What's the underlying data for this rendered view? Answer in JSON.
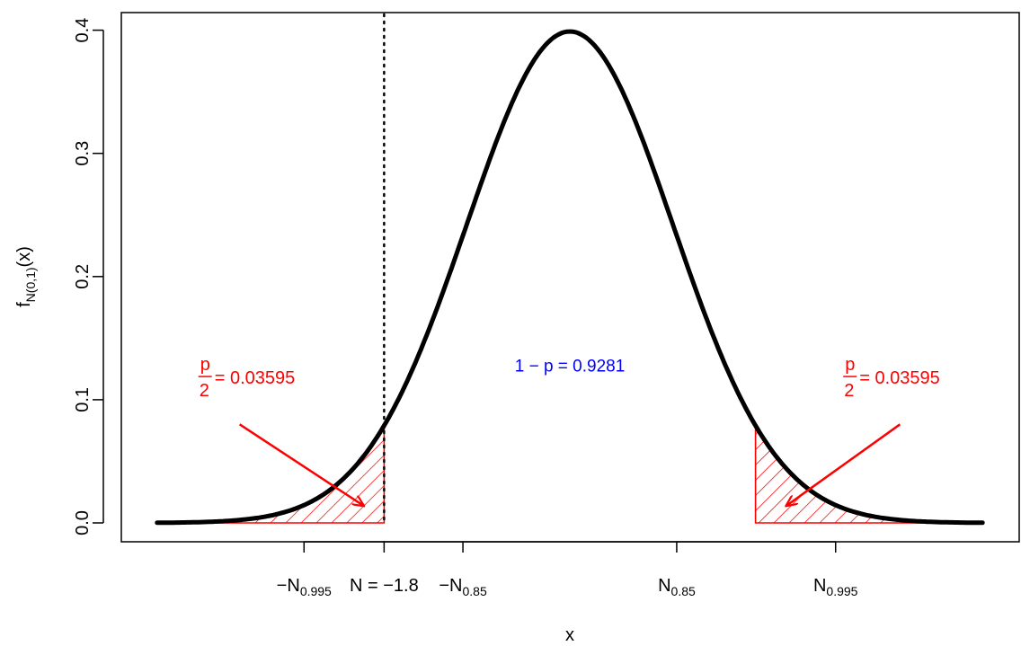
{
  "chart_data": {
    "type": "area",
    "title": "",
    "xlabel": "x",
    "ylabel_main": "f",
    "ylabel_sub": "N(0,1)",
    "ylabel_suffix": "(x)",
    "xlim": [
      -4.2,
      4.2
    ],
    "ylim": [
      0,
      0.4
    ],
    "y_ticks": [
      0.0,
      0.1,
      0.2,
      0.3,
      0.4
    ],
    "y_tick_labels": [
      "0.0",
      "0.1",
      "0.2",
      "0.3",
      "0.4"
    ],
    "curve": {
      "name": "",
      "function": "standard normal density",
      "mean": 0,
      "sd": 1,
      "x_from": -4,
      "x_to": 4,
      "color": "#000000"
    },
    "x_ticks": [
      {
        "x": -2.576,
        "sign": "−",
        "main": "N",
        "sub": "0.995",
        "suffix": ""
      },
      {
        "x": -1.8,
        "sign": "",
        "main": "N = −1.8",
        "sub": "",
        "suffix": ""
      },
      {
        "x": -1.036,
        "sign": "−",
        "main": "N",
        "sub": "0.85",
        "suffix": ""
      },
      {
        "x": 1.036,
        "sign": "",
        "main": "N",
        "sub": "0.85",
        "suffix": ""
      },
      {
        "x": 2.576,
        "sign": "",
        "main": "N",
        "sub": "0.995",
        "suffix": ""
      }
    ],
    "observed_line": {
      "x": -1.8,
      "style": "dotted",
      "color": "#000000"
    },
    "shaded_regions": [
      {
        "from": -4,
        "to": -1.8,
        "color": "#ff0000",
        "fill": "hatched"
      },
      {
        "from": 1.8,
        "to": 4,
        "color": "#ff0000",
        "fill": "hatched"
      }
    ],
    "annotations": [
      {
        "id": "left-tail",
        "frac_num": "p",
        "frac_den": "2",
        "text": "= 0.03595",
        "color": "#ff0000",
        "x": -3.6,
        "y": 0.113,
        "arrow_from": [
          -3.2,
          0.08
        ],
        "arrow_to": [
          -2.0,
          0.014
        ]
      },
      {
        "id": "right-tail",
        "frac_num": "p",
        "frac_den": "2",
        "text": "= 0.03595",
        "color": "#ff0000",
        "x": 2.65,
        "y": 0.113,
        "arrow_from": [
          3.2,
          0.08
        ],
        "arrow_to": [
          2.1,
          0.014
        ]
      },
      {
        "id": "center",
        "text": "1 − p = 0.9281",
        "color": "#0000ff",
        "x": 0,
        "y": 0.123
      }
    ],
    "grid": false,
    "legend": "none"
  }
}
